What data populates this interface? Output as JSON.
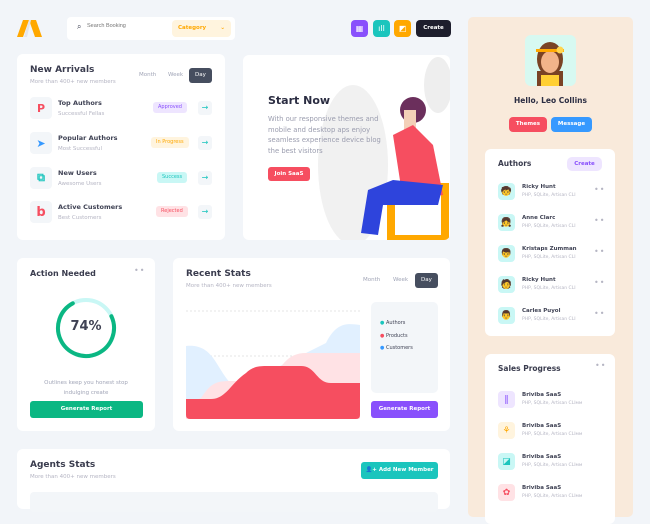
{
  "header": {
    "search_placeholder": "Search Booking",
    "category": "Category",
    "create_label": "Create"
  },
  "new_arrivals": {
    "title": "New Arrivals",
    "subtitle": "More than 400+ new members",
    "tabs": [
      "Month",
      "Week",
      "Day"
    ],
    "items": [
      {
        "title": "Top Authors",
        "subtitle": "Successful Fellas",
        "badge": "Approved",
        "icon": "P"
      },
      {
        "title": "Popular Authors",
        "subtitle": "Most Successful",
        "badge": "In Progress",
        "icon": "➤"
      },
      {
        "title": "New Users",
        "subtitle": "Awesome Users",
        "badge": "Success",
        "icon": "⧉"
      },
      {
        "title": "Active Customers",
        "subtitle": "Best Customers",
        "badge": "Rejected",
        "icon": "b"
      }
    ]
  },
  "start_now": {
    "title": "Start Now",
    "text": "With our responsive themes and mobile and desktop aps enjoy seamless experience device blog the best visitors",
    "button": "Join SaaS"
  },
  "action_needed": {
    "title": "Action Needed",
    "percent": "74%",
    "progress": 74,
    "text": "Outlines keep you honest stop indulging create",
    "button": "Generate Report"
  },
  "recent_stats": {
    "title": "Recent Stats",
    "subtitle": "More than 400+ new members",
    "tabs": [
      "Month",
      "Week",
      "Day"
    ],
    "legend": [
      "Authors",
      "Products",
      "Customers"
    ],
    "legend_colors": [
      "#1bc5bd",
      "#f64e60",
      "#3699ff"
    ],
    "button": "Generate Report"
  },
  "agents_stats": {
    "title": "Agents Stats",
    "subtitle": "More than 400+ new members",
    "button": "Add New Member"
  },
  "profile": {
    "greeting": "Hello, Leo Collins",
    "themes": "Themes",
    "message": "Message"
  },
  "authors": {
    "title": "Authors",
    "create": "Create",
    "items": [
      {
        "name": "Ricky Hunt",
        "skills": "PHP, SQLite, Artisan CLI"
      },
      {
        "name": "Anne Clarc",
        "skills": "PHP, SQLite, Artisan CLI"
      },
      {
        "name": "Kristaps Zumman",
        "skills": "PHP, SQLite, Artisan CLI"
      },
      {
        "name": "Ricky Hunt",
        "skills": "PHP, SQLite, Artisan CLI"
      },
      {
        "name": "Carles Puyol",
        "skills": "PHP, SQLite, Artisan CLI"
      }
    ]
  },
  "sales": {
    "title": "Sales Progress",
    "items": [
      {
        "name": "Briviba SaaS",
        "skills": "PHP, SQLite, Artisan CLIмм"
      },
      {
        "name": "Briviba SaaS",
        "skills": "PHP, SQLite, Artisan CLIмм"
      },
      {
        "name": "Briviba SaaS",
        "skills": "PHP, SQLite, Artisan CLIмм"
      },
      {
        "name": "Briviba SaaS",
        "skills": "PHP, SQLite, Artisan CLIмм"
      }
    ]
  }
}
